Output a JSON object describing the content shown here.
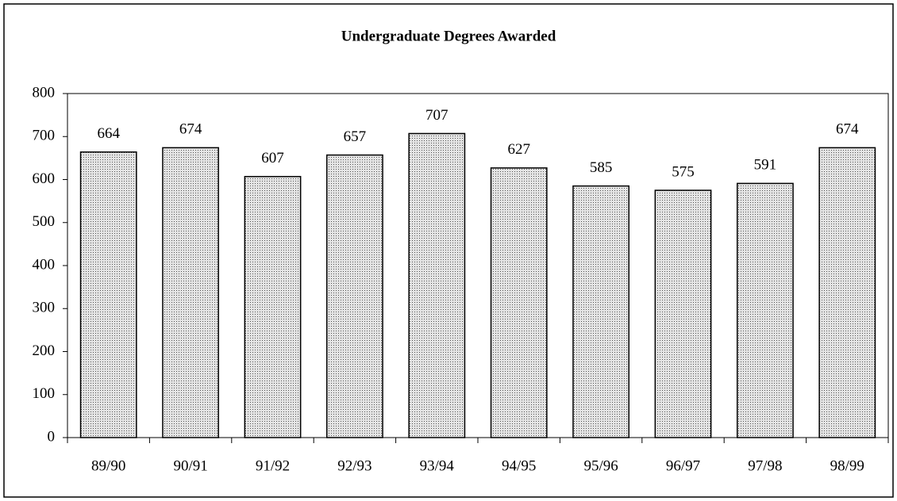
{
  "chart_data": {
    "type": "bar",
    "title": "Undergraduate Degrees Awarded",
    "categories": [
      "89/90",
      "90/91",
      "91/92",
      "92/93",
      "93/94",
      "94/95",
      "95/96",
      "96/97",
      "97/98",
      "98/99"
    ],
    "values": [
      664,
      674,
      607,
      657,
      707,
      627,
      585,
      575,
      591,
      674
    ],
    "color": "#e4e4e4",
    "ylim": [
      0,
      800
    ],
    "yticks": [
      0,
      100,
      200,
      300,
      400,
      500,
      600,
      700,
      800
    ],
    "grid": false
  }
}
